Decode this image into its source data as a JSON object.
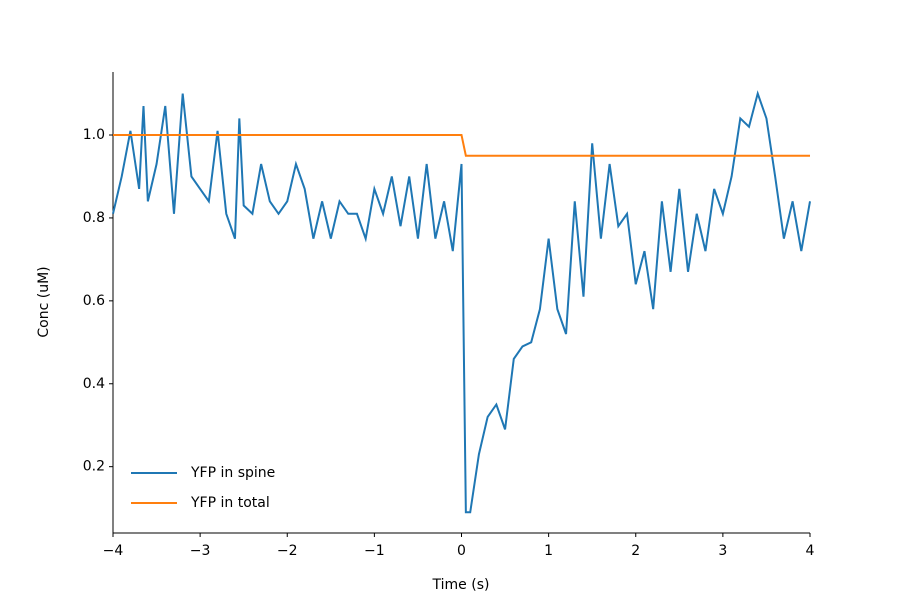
{
  "chart_data": {
    "type": "line",
    "xlabel": "Time (s)",
    "ylabel": "Conc (uM)",
    "xlim": [
      -4,
      4
    ],
    "ylim": [
      0.04,
      1.152
    ],
    "xticks": [
      {
        "value": -4,
        "label": "−4"
      },
      {
        "value": -3,
        "label": "−3"
      },
      {
        "value": -2,
        "label": "−2"
      },
      {
        "value": -1,
        "label": "−1"
      },
      0,
      1,
      2,
      3,
      4
    ],
    "yticks": [
      0.2,
      0.4,
      0.6,
      0.8,
      {
        "value": 1,
        "label": "1.0"
      }
    ],
    "legend": "lower left",
    "series": [
      {
        "name": "YFP in spine",
        "color": "#1f77b4",
        "x": [
          -4,
          -3.9,
          -3.8,
          -3.7,
          -3.65,
          -3.6,
          -3.5,
          -3.4,
          -3.3,
          -3.2,
          -3.1,
          -3.0,
          -2.9,
          -2.8,
          -2.7,
          -2.6,
          -2.55,
          -2.5,
          -2.4,
          -2.3,
          -2.2,
          -2.1,
          -2.0,
          -1.9,
          -1.8,
          -1.7,
          -1.6,
          -1.5,
          -1.4,
          -1.3,
          -1.2,
          -1.1,
          -1.0,
          -0.9,
          -0.8,
          -0.7,
          -0.6,
          -0.5,
          -0.4,
          -0.3,
          -0.2,
          -0.1,
          0.0,
          0.05,
          0.1,
          0.2,
          0.3,
          0.4,
          0.5,
          0.6,
          0.7,
          0.8,
          0.9,
          1.0,
          1.1,
          1.2,
          1.3,
          1.4,
          1.5,
          1.6,
          1.7,
          1.8,
          1.9,
          2.0,
          2.1,
          2.2,
          2.3,
          2.4,
          2.5,
          2.6,
          2.7,
          2.8,
          2.9,
          3.0,
          3.1,
          3.2,
          3.3,
          3.4,
          3.5,
          3.6,
          3.7,
          3.8,
          3.9,
          4.0
        ],
        "values": [
          0.81,
          0.9,
          1.01,
          0.87,
          1.07,
          0.84,
          0.93,
          1.07,
          0.81,
          1.1,
          0.9,
          0.87,
          0.84,
          1.01,
          0.81,
          0.75,
          1.04,
          0.83,
          0.81,
          0.93,
          0.84,
          0.81,
          0.84,
          0.93,
          0.87,
          0.75,
          0.84,
          0.75,
          0.84,
          0.81,
          0.81,
          0.75,
          0.87,
          0.81,
          0.9,
          0.78,
          0.9,
          0.75,
          0.93,
          0.75,
          0.84,
          0.72,
          0.93,
          0.09,
          0.09,
          0.23,
          0.32,
          0.35,
          0.29,
          0.46,
          0.49,
          0.5,
          0.58,
          0.75,
          0.58,
          0.52,
          0.84,
          0.61,
          0.98,
          0.75,
          0.93,
          0.78,
          0.81,
          0.64,
          0.72,
          0.58,
          0.84,
          0.67,
          0.87,
          0.67,
          0.81,
          0.72,
          0.87,
          0.81,
          0.9,
          1.04,
          1.02,
          1.1,
          1.04,
          0.9,
          0.75,
          0.84,
          0.72,
          0.84
        ]
      },
      {
        "name": "YFP in total",
        "color": "#ff7f0e",
        "x": [
          -4,
          0,
          0.05,
          4
        ],
        "values": [
          1.0,
          1.0,
          0.95,
          0.95
        ]
      }
    ]
  }
}
